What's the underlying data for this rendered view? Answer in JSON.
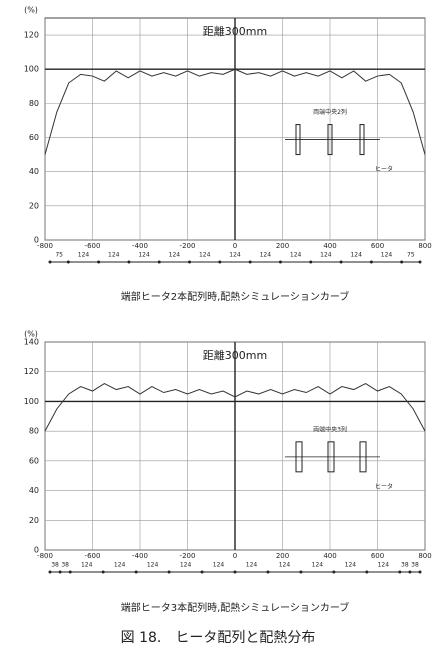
{
  "chart_data": [
    {
      "type": "line",
      "annotation": "距離300mm",
      "y_unit": "(%)",
      "heater_label": "ヒータ",
      "heater_note": "両端中央2列",
      "caption": "端部ヒータ2本配列時,配熱シミュレーションカーブ",
      "x": [
        -800,
        -750,
        -700,
        -650,
        -600,
        -550,
        -500,
        -450,
        -400,
        -350,
        -300,
        -250,
        -200,
        -150,
        -100,
        -50,
        0,
        50,
        100,
        150,
        200,
        250,
        300,
        350,
        400,
        450,
        500,
        550,
        600,
        650,
        700,
        750,
        800
      ],
      "series": [
        {
          "color": "#333333",
          "values": [
            50,
            75,
            92,
            97,
            96,
            93,
            99,
            95,
            99,
            96,
            98,
            96,
            99,
            96,
            98,
            97,
            100,
            97,
            98,
            96,
            99,
            96,
            98,
            96,
            99,
            95,
            99,
            93,
            96,
            97,
            92,
            75,
            50
          ]
        }
      ],
      "xlim": [
        -800,
        800
      ],
      "xticks": [
        -800,
        -600,
        -400,
        -200,
        0,
        200,
        400,
        600,
        800
      ],
      "ylim": [
        0,
        130
      ],
      "yticks": [
        0,
        20,
        40,
        60,
        80,
        100,
        120
      ],
      "grid": true,
      "heater_pitch": [
        75,
        124,
        124,
        124,
        124,
        124,
        124,
        124,
        124,
        124,
        124,
        124,
        75
      ]
    },
    {
      "type": "line",
      "annotation": "距離300mm",
      "y_unit": "(%)",
      "heater_label": "ヒータ",
      "heater_note": "両端中央3列",
      "caption": "端部ヒータ3本配列時,配熱シミュレーションカーブ",
      "x": [
        -800,
        -750,
        -700,
        -650,
        -600,
        -550,
        -500,
        -450,
        -400,
        -350,
        -300,
        -250,
        -200,
        -150,
        -100,
        -50,
        0,
        50,
        100,
        150,
        200,
        250,
        300,
        350,
        400,
        450,
        500,
        550,
        600,
        650,
        700,
        750,
        800
      ],
      "series": [
        {
          "color": "#333333",
          "values": [
            80,
            95,
            105,
            110,
            107,
            112,
            108,
            110,
            105,
            110,
            106,
            108,
            105,
            108,
            105,
            107,
            103,
            107,
            105,
            108,
            105,
            108,
            106,
            110,
            105,
            110,
            108,
            112,
            107,
            110,
            105,
            95,
            80
          ]
        }
      ],
      "xlim": [
        -800,
        800
      ],
      "xticks": [
        -800,
        -600,
        -400,
        -200,
        0,
        200,
        400,
        600,
        800
      ],
      "ylim": [
        0,
        140
      ],
      "yticks": [
        0,
        20,
        40,
        60,
        80,
        100,
        120,
        140
      ],
      "grid": true,
      "heater_pitch": [
        38,
        38,
        124,
        124,
        124,
        124,
        124,
        124,
        124,
        124,
        124,
        124,
        38,
        38
      ]
    }
  ],
  "figure_caption": "図 18.　ヒータ配列と配熱分布"
}
